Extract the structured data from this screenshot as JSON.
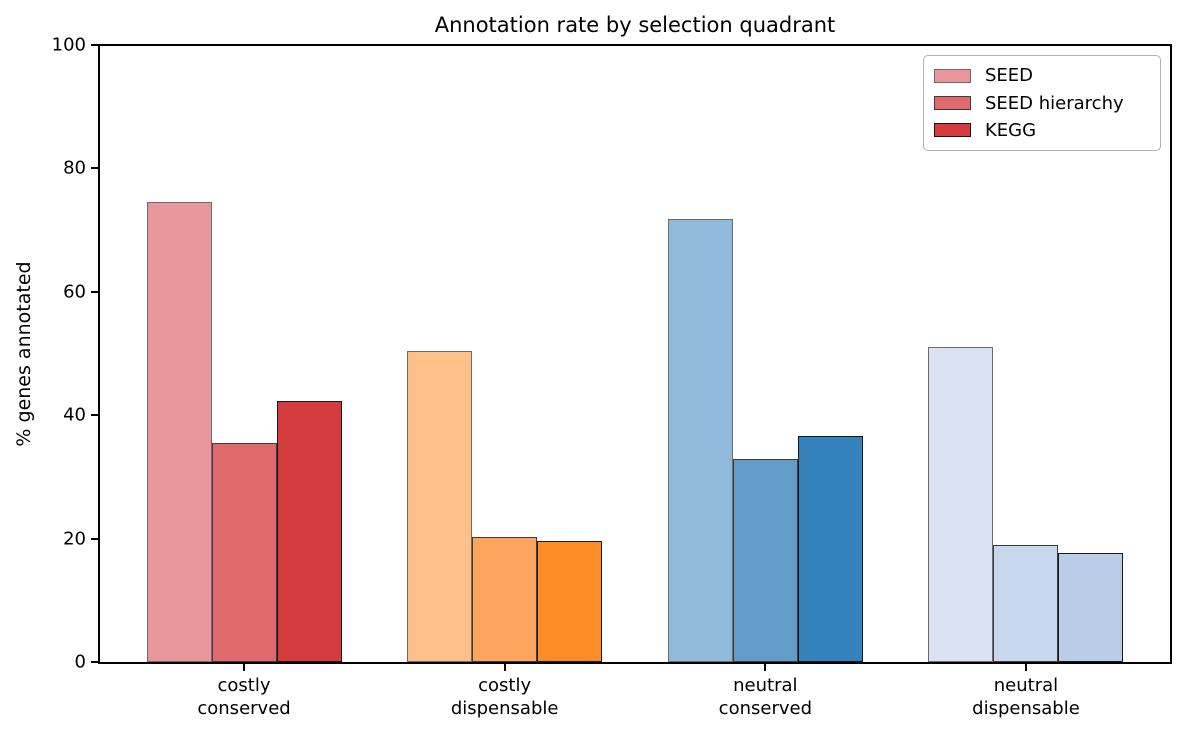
{
  "chart_data": {
    "type": "bar",
    "title": "Annotation rate by selection quadrant",
    "xlabel": "",
    "ylabel": "% genes annotated",
    "ylim": [
      0,
      100
    ],
    "yticks": [
      0,
      20,
      40,
      60,
      80,
      100
    ],
    "grid": false,
    "background_color": "#ffffff",
    "axis_color": "#000000",
    "categories": [
      "costly\nconserved",
      "costly\ndispensable",
      "neutral\nconserved",
      "neutral\ndispensable"
    ],
    "category_lines": [
      [
        "costly",
        "conserved"
      ],
      [
        "costly",
        "dispensable"
      ],
      [
        "neutral",
        "conserved"
      ],
      [
        "neutral",
        "dispensable"
      ]
    ],
    "series": [
      {
        "name": "SEED",
        "values": [
          74.6,
          50.4,
          71.8,
          51.1
        ]
      },
      {
        "name": "SEED hierarchy",
        "values": [
          35.5,
          20.3,
          32.9,
          18.9
        ]
      },
      {
        "name": "KEGG",
        "values": [
          42.3,
          19.6,
          36.7,
          17.7
        ]
      }
    ],
    "group_palettes": [
      [
        "#e8959b",
        "#e0696b",
        "#d53a3c"
      ],
      [
        "#fdc089",
        "#fda55c",
        "#fd8c27"
      ],
      [
        "#90b9db",
        "#619dc8",
        "#3482bc"
      ],
      [
        "#dae3f1",
        "#c9d7ec",
        "#b9cce8"
      ]
    ],
    "series_edge_colors": [
      "#6f6a6a",
      "#403c3c",
      "#181818"
    ],
    "legend": {
      "position": "upper right",
      "entries": [
        "SEED",
        "SEED hierarchy",
        "KEGG"
      ],
      "swatch_colors": [
        "#e8959b",
        "#e0696b",
        "#d53a3c"
      ]
    }
  }
}
